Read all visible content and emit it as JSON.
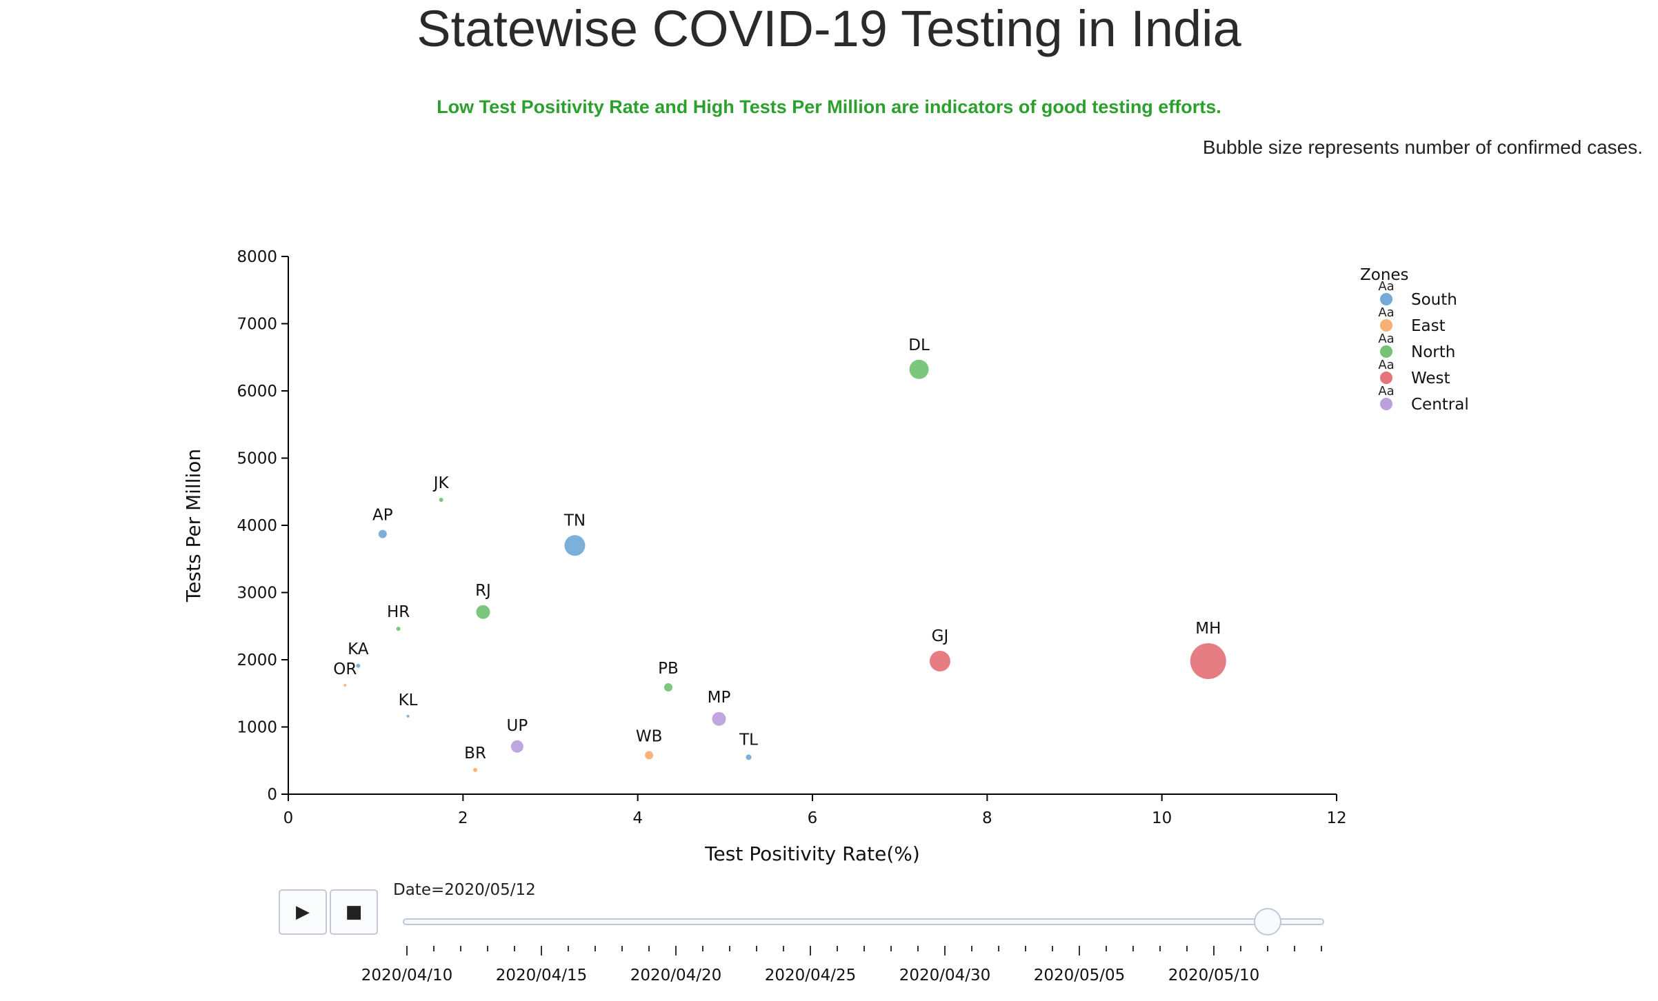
{
  "header": {
    "title": "Statewise COVID-19 Testing in India",
    "subtitle": "Low Test Positivity Rate and High Tests Per Million are indicators of good testing efforts.",
    "note": "Bubble size represents number of confirmed cases."
  },
  "colors": {
    "South": "#5b9bd0",
    "East": "#f7a15a",
    "North": "#5cb85c",
    "West": "#e05c64",
    "Central": "#b08fd6",
    "subtitle": "#2ca02c"
  },
  "chart_data": {
    "type": "scatter",
    "xlabel": "Test Positivity Rate(%)",
    "ylabel": "Tests Per Million",
    "xlim": [
      0,
      12
    ],
    "ylim": [
      0,
      8000
    ],
    "xticks": [
      "0",
      "2",
      "4",
      "6",
      "8",
      "10",
      "12"
    ],
    "yticks": [
      "0",
      "1000",
      "2000",
      "3000",
      "4000",
      "5000",
      "6000",
      "7000",
      "8000"
    ],
    "grid": false,
    "legend": {
      "title": "Zones",
      "position": "top-right",
      "glyph_text": "Aa",
      "entries": [
        "South",
        "East",
        "North",
        "West",
        "Central"
      ]
    },
    "size_note": "Bubble size represents number of confirmed cases.",
    "points": [
      {
        "label": "DL",
        "zone": "North",
        "x": 7.22,
        "y": 6320,
        "size": 14
      },
      {
        "label": "JK",
        "zone": "North",
        "x": 1.75,
        "y": 4380,
        "size": 3
      },
      {
        "label": "AP",
        "zone": "South",
        "x": 1.08,
        "y": 3870,
        "size": 6
      },
      {
        "label": "TN",
        "zone": "South",
        "x": 3.28,
        "y": 3700,
        "size": 15
      },
      {
        "label": "RJ",
        "zone": "North",
        "x": 2.23,
        "y": 2710,
        "size": 10
      },
      {
        "label": "HR",
        "zone": "North",
        "x": 1.26,
        "y": 2460,
        "size": 3
      },
      {
        "label": "KA",
        "zone": "South",
        "x": 0.8,
        "y": 1910,
        "size": 3
      },
      {
        "label": "OR",
        "zone": "East",
        "x": 0.65,
        "y": 1620,
        "size": 2
      },
      {
        "label": "KL",
        "zone": "South",
        "x": 1.37,
        "y": 1160,
        "size": 2
      },
      {
        "label": "BR",
        "zone": "East",
        "x": 2.14,
        "y": 360,
        "size": 3
      },
      {
        "label": "UP",
        "zone": "Central",
        "x": 2.62,
        "y": 710,
        "size": 9
      },
      {
        "label": "PB",
        "zone": "North",
        "x": 4.35,
        "y": 1590,
        "size": 6
      },
      {
        "label": "WB",
        "zone": "East",
        "x": 4.13,
        "y": 580,
        "size": 6
      },
      {
        "label": "MP",
        "zone": "Central",
        "x": 4.93,
        "y": 1120,
        "size": 10
      },
      {
        "label": "TL",
        "zone": "South",
        "x": 5.27,
        "y": 550,
        "size": 4
      },
      {
        "label": "GJ",
        "zone": "West",
        "x": 7.46,
        "y": 1980,
        "size": 15
      },
      {
        "label": "MH",
        "zone": "West",
        "x": 10.53,
        "y": 1980,
        "size": 26
      }
    ]
  },
  "slider": {
    "prefix": "Date=",
    "current": "2020/05/12",
    "labels": [
      "2020/04/10",
      "2020/04/15",
      "2020/04/20",
      "2020/04/25",
      "2020/04/30",
      "2020/05/05",
      "2020/05/10"
    ],
    "start": "2020/04/10",
    "end": "2020/05/14"
  },
  "controls": {
    "play": "▶",
    "stop": "■"
  }
}
